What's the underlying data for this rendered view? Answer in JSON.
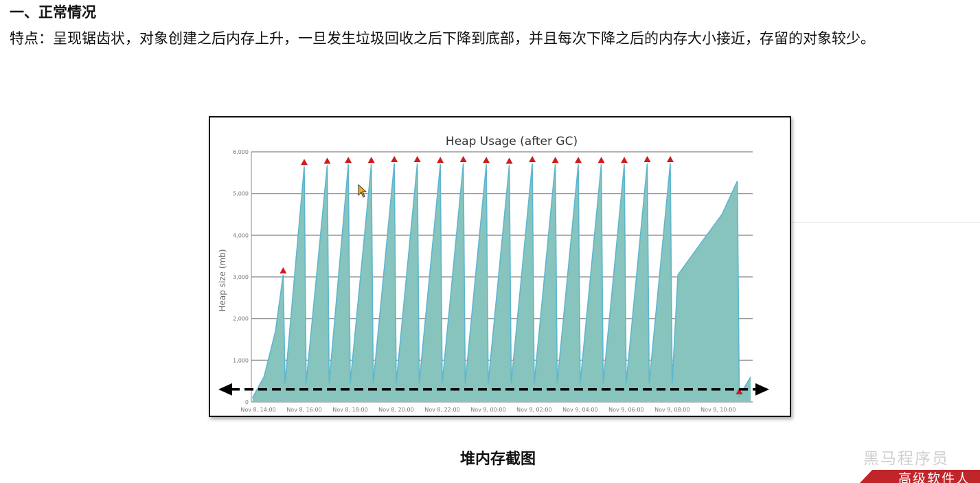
{
  "heading": "一、正常情况",
  "description": "特点：呈现锯齿状，对象创建之后内存上升，一旦发生垃圾回收之后下降到底部，并且每次下降之后的内存大小接近，存留的对象较少。",
  "caption": "堆内存截图",
  "watermark": {
    "logo_text": "黑马程序员",
    "banner_text": "高级软件人"
  },
  "chart_data": {
    "type": "area",
    "title": "Heap Usage (after GC)",
    "xlabel": "",
    "ylabel": "Heap size (mb)",
    "ylim": [
      0,
      6000
    ],
    "yticks": [
      "0",
      "1,000",
      "2,000",
      "3,000",
      "4,000",
      "5,000",
      "6,000"
    ],
    "ytick_values": [
      0,
      1000,
      2000,
      3000,
      4000,
      5000,
      6000
    ],
    "xlim_hours": [
      13.7,
      11.5
    ],
    "xticks": [
      "Nov 8, 14:00",
      "Nov 8, 16:00",
      "Nov 8, 18:00",
      "Nov 8, 20:00",
      "Nov 8, 22:00",
      "Nov 9, 00:00",
      "Nov 9, 02:00",
      "Nov 9, 04:00",
      "Nov 9, 06:00",
      "Nov 9, 08:00",
      "Nov 9, 10:00"
    ],
    "grid": true,
    "series": [
      {
        "values_note_units": "mb",
        "points": [
          [
            "Nov 8, 13:45",
            100
          ],
          [
            "Nov 8, 14:15",
            600
          ],
          [
            "Nov 8, 14:45",
            1700
          ],
          [
            "Nov 8, 15:05",
            3050
          ],
          [
            "Nov 8, 15:10",
            450
          ],
          [
            "Nov 8, 16:00",
            5650
          ],
          [
            "Nov 8, 16:05",
            450
          ],
          [
            "Nov 8, 17:00",
            5680
          ],
          [
            "Nov 8, 17:05",
            450
          ],
          [
            "Nov 8, 17:55",
            5700
          ],
          [
            "Nov 8, 18:00",
            450
          ],
          [
            "Nov 8, 18:55",
            5700
          ],
          [
            "Nov 8, 19:00",
            450
          ],
          [
            "Nov 8, 19:55",
            5720
          ],
          [
            "Nov 8, 20:00",
            450
          ],
          [
            "Nov 8, 20:55",
            5720
          ],
          [
            "Nov 8, 21:00",
            450
          ],
          [
            "Nov 8, 21:55",
            5700
          ],
          [
            "Nov 8, 22:00",
            450
          ],
          [
            "Nov 8, 22:55",
            5720
          ],
          [
            "Nov 8, 23:00",
            450
          ],
          [
            "Nov 8, 23:55",
            5700
          ],
          [
            "Nov 9, 00:00",
            450
          ],
          [
            "Nov 9, 00:55",
            5680
          ],
          [
            "Nov 9, 01:00",
            450
          ],
          [
            "Nov 9, 01:55",
            5720
          ],
          [
            "Nov 9, 02:00",
            450
          ],
          [
            "Nov 9, 02:55",
            5700
          ],
          [
            "Nov 9, 03:00",
            450
          ],
          [
            "Nov 9, 03:55",
            5700
          ],
          [
            "Nov 9, 04:00",
            450
          ],
          [
            "Nov 9, 04:55",
            5700
          ],
          [
            "Nov 9, 05:00",
            450
          ],
          [
            "Nov 9, 05:55",
            5700
          ],
          [
            "Nov 9, 06:00",
            450
          ],
          [
            "Nov 9, 06:55",
            5720
          ],
          [
            "Nov 9, 07:00",
            450
          ],
          [
            "Nov 9, 07:55",
            5720
          ],
          [
            "Nov 9, 08:00",
            450
          ],
          [
            "Nov 9, 08:15",
            3050
          ],
          [
            "Nov 9, 09:30",
            4000
          ],
          [
            "Nov 9, 10:10",
            4500
          ],
          [
            "Nov 9, 10:50",
            5300
          ],
          [
            "Nov 9, 10:55",
            150
          ],
          [
            "Nov 9, 11:25",
            600
          ]
        ]
      }
    ],
    "gc_markers": [
      [
        "Nov 8, 15:05",
        3050
      ],
      [
        "Nov 8, 16:00",
        5650
      ],
      [
        "Nov 8, 17:00",
        5680
      ],
      [
        "Nov 8, 17:55",
        5700
      ],
      [
        "Nov 8, 18:55",
        5700
      ],
      [
        "Nov 8, 19:55",
        5720
      ],
      [
        "Nov 8, 20:55",
        5720
      ],
      [
        "Nov 8, 21:55",
        5700
      ],
      [
        "Nov 8, 22:55",
        5720
      ],
      [
        "Nov 8, 23:55",
        5700
      ],
      [
        "Nov 9, 00:55",
        5680
      ],
      [
        "Nov 9, 01:55",
        5720
      ],
      [
        "Nov 9, 02:55",
        5700
      ],
      [
        "Nov 9, 03:55",
        5700
      ],
      [
        "Nov 9, 04:55",
        5700
      ],
      [
        "Nov 9, 05:55",
        5700
      ],
      [
        "Nov 9, 06:55",
        5720
      ],
      [
        "Nov 9, 07:55",
        5720
      ],
      [
        "Nov 9, 10:55",
        150
      ]
    ],
    "baseline_annotation": {
      "style": "dashed double-arrow",
      "value": 300
    },
    "colors": {
      "area_fill": "#86c4bd",
      "area_stroke": "#5fb6cf",
      "marker": "#d11a1a",
      "grid": "#9a9a9a",
      "annotation": "#000000"
    }
  }
}
